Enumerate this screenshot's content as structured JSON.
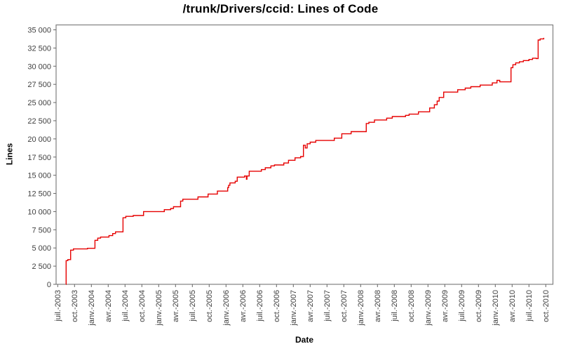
{
  "chart_data": {
    "type": "line",
    "subtype": "step-after",
    "title": "/trunk/Drivers/ccid: Lines of Code",
    "xlabel": "Date",
    "ylabel": "Lines",
    "grid": false,
    "legend": "none",
    "line_color": "#e60000",
    "axis_color": "#808080",
    "tick_color": "#666666",
    "tick_label_color": "#3f3f3f",
    "background_color": "#ffffff",
    "ylim": [
      0,
      35000
    ],
    "y_tick_labels": [
      "0",
      "2 500",
      "5 000",
      "7 500",
      "10 000",
      "12 500",
      "15 000",
      "17 500",
      "20 000",
      "22 500",
      "25 000",
      "27 500",
      "30 000",
      "32 500",
      "35 000"
    ],
    "y_tick_values": [
      0,
      2500,
      5000,
      7500,
      10000,
      12500,
      15000,
      17500,
      20000,
      22500,
      25000,
      27500,
      30000,
      32500,
      35000
    ],
    "x_tick_labels": [
      "juil.-2003",
      "oct.-2003",
      "janv.-2004",
      "avr.-2004",
      "juil.-2004",
      "oct.-2004",
      "janv.-2005",
      "avr.-2005",
      "juil.-2005",
      "oct.-2005",
      "janv.-2006",
      "avr.-2006",
      "juil.-2006",
      "oct.-2006",
      "janv.-2007",
      "avr.-2007",
      "juil.-2007",
      "oct.-2007",
      "janv.-2008",
      "avr.-2008",
      "juil.-2008",
      "oct.-2008",
      "janv.-2009",
      "avr.-2009",
      "juil.-2009",
      "oct.-2009",
      "janv.-2010",
      "avr.-2010",
      "juil.-2010",
      "oct.-2010"
    ],
    "x_tick_interval_months": 3,
    "xlim": [
      "2003-07-01",
      "2010-11-15"
    ],
    "points": [
      {
        "date": "2003-08-15",
        "lines": 0
      },
      {
        "date": "2003-08-16",
        "lines": 3250
      },
      {
        "date": "2003-08-25",
        "lines": 3400
      },
      {
        "date": "2003-09-10",
        "lines": 4700
      },
      {
        "date": "2003-09-25",
        "lines": 4870
      },
      {
        "date": "2003-12-10",
        "lines": 4950
      },
      {
        "date": "2004-01-20",
        "lines": 6050
      },
      {
        "date": "2004-02-05",
        "lines": 6350
      },
      {
        "date": "2004-02-20",
        "lines": 6500
      },
      {
        "date": "2004-04-05",
        "lines": 6700
      },
      {
        "date": "2004-04-25",
        "lines": 6980
      },
      {
        "date": "2004-05-10",
        "lines": 7210
      },
      {
        "date": "2004-06-20",
        "lines": 9150
      },
      {
        "date": "2004-07-05",
        "lines": 9350
      },
      {
        "date": "2004-08-15",
        "lines": 9460
      },
      {
        "date": "2004-10-10",
        "lines": 10000
      },
      {
        "date": "2005-02-01",
        "lines": 10260
      },
      {
        "date": "2005-03-05",
        "lines": 10430
      },
      {
        "date": "2005-03-20",
        "lines": 10670
      },
      {
        "date": "2005-04-28",
        "lines": 11450
      },
      {
        "date": "2005-05-10",
        "lines": 11700
      },
      {
        "date": "2005-08-01",
        "lines": 12020
      },
      {
        "date": "2005-09-25",
        "lines": 12420
      },
      {
        "date": "2005-11-15",
        "lines": 12820
      },
      {
        "date": "2006-01-10",
        "lines": 13300
      },
      {
        "date": "2006-01-15",
        "lines": 13620
      },
      {
        "date": "2006-01-22",
        "lines": 13940
      },
      {
        "date": "2006-02-20",
        "lines": 14170
      },
      {
        "date": "2006-03-01",
        "lines": 14740
      },
      {
        "date": "2006-04-10",
        "lines": 14900
      },
      {
        "date": "2006-04-20",
        "lines": 14450
      },
      {
        "date": "2006-04-23",
        "lines": 14900
      },
      {
        "date": "2006-05-05",
        "lines": 15550
      },
      {
        "date": "2006-07-10",
        "lines": 15780
      },
      {
        "date": "2006-08-01",
        "lines": 16030
      },
      {
        "date": "2006-09-01",
        "lines": 16290
      },
      {
        "date": "2006-09-20",
        "lines": 16410
      },
      {
        "date": "2006-11-10",
        "lines": 16680
      },
      {
        "date": "2006-12-05",
        "lines": 17060
      },
      {
        "date": "2007-01-10",
        "lines": 17400
      },
      {
        "date": "2007-02-10",
        "lines": 17570
      },
      {
        "date": "2007-02-25",
        "lines": 19130
      },
      {
        "date": "2007-03-05",
        "lines": 18750
      },
      {
        "date": "2007-03-15",
        "lines": 19330
      },
      {
        "date": "2007-04-01",
        "lines": 19550
      },
      {
        "date": "2007-05-01",
        "lines": 19780
      },
      {
        "date": "2007-08-10",
        "lines": 20100
      },
      {
        "date": "2007-09-20",
        "lines": 20700
      },
      {
        "date": "2007-11-10",
        "lines": 21000
      },
      {
        "date": "2008-02-01",
        "lines": 22120
      },
      {
        "date": "2008-02-15",
        "lines": 22280
      },
      {
        "date": "2008-03-15",
        "lines": 22600
      },
      {
        "date": "2008-05-20",
        "lines": 22850
      },
      {
        "date": "2008-06-20",
        "lines": 23080
      },
      {
        "date": "2008-09-01",
        "lines": 23240
      },
      {
        "date": "2008-09-20",
        "lines": 23400
      },
      {
        "date": "2008-11-10",
        "lines": 23720
      },
      {
        "date": "2009-01-10",
        "lines": 24250
      },
      {
        "date": "2009-02-05",
        "lines": 24700
      },
      {
        "date": "2009-02-20",
        "lines": 25200
      },
      {
        "date": "2009-03-01",
        "lines": 25700
      },
      {
        "date": "2009-03-25",
        "lines": 26440
      },
      {
        "date": "2009-06-10",
        "lines": 26760
      },
      {
        "date": "2009-07-20",
        "lines": 26990
      },
      {
        "date": "2009-08-20",
        "lines": 27180
      },
      {
        "date": "2009-10-10",
        "lines": 27400
      },
      {
        "date": "2009-12-15",
        "lines": 27700
      },
      {
        "date": "2010-01-10",
        "lines": 28050
      },
      {
        "date": "2010-01-25",
        "lines": 27850
      },
      {
        "date": "2010-03-25",
        "lines": 29800
      },
      {
        "date": "2010-04-05",
        "lines": 30200
      },
      {
        "date": "2010-04-20",
        "lines": 30450
      },
      {
        "date": "2010-05-10",
        "lines": 30620
      },
      {
        "date": "2010-06-01",
        "lines": 30770
      },
      {
        "date": "2010-07-01",
        "lines": 30930
      },
      {
        "date": "2010-07-20",
        "lines": 31100
      },
      {
        "date": "2010-08-10",
        "lines": 31050
      },
      {
        "date": "2010-08-20",
        "lines": 33600
      },
      {
        "date": "2010-09-01",
        "lines": 33750
      },
      {
        "date": "2010-09-20",
        "lines": 33900
      }
    ]
  }
}
